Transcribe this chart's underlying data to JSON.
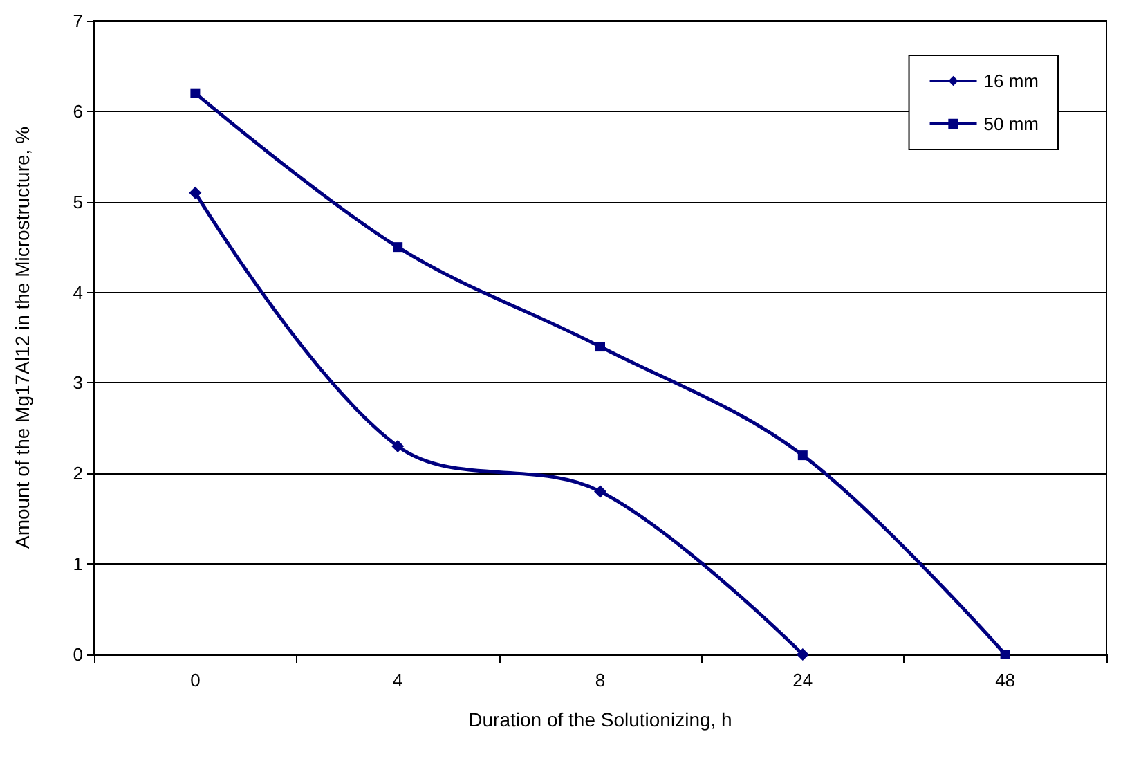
{
  "chart_data": {
    "type": "line",
    "xlabel": "Duration of the Solutionizing, h",
    "ylabel": "Amount of the Mg17Al12 in the Microstructure, %",
    "categories": [
      "0",
      "4",
      "8",
      "24",
      "48"
    ],
    "series": [
      {
        "name": "16 mm",
        "color": "#000080",
        "marker": "diamond",
        "values": [
          5.1,
          2.3,
          1.8,
          0,
          null
        ]
      },
      {
        "name": "50 mm",
        "color": "#000080",
        "marker": "square",
        "values": [
          6.2,
          4.5,
          3.4,
          2.2,
          0
        ]
      }
    ],
    "ylim": [
      0,
      7
    ],
    "yticks": [
      0,
      1,
      2,
      3,
      4,
      5,
      6,
      7
    ],
    "grid": "y",
    "legend": "top right",
    "line_style": "solid"
  }
}
